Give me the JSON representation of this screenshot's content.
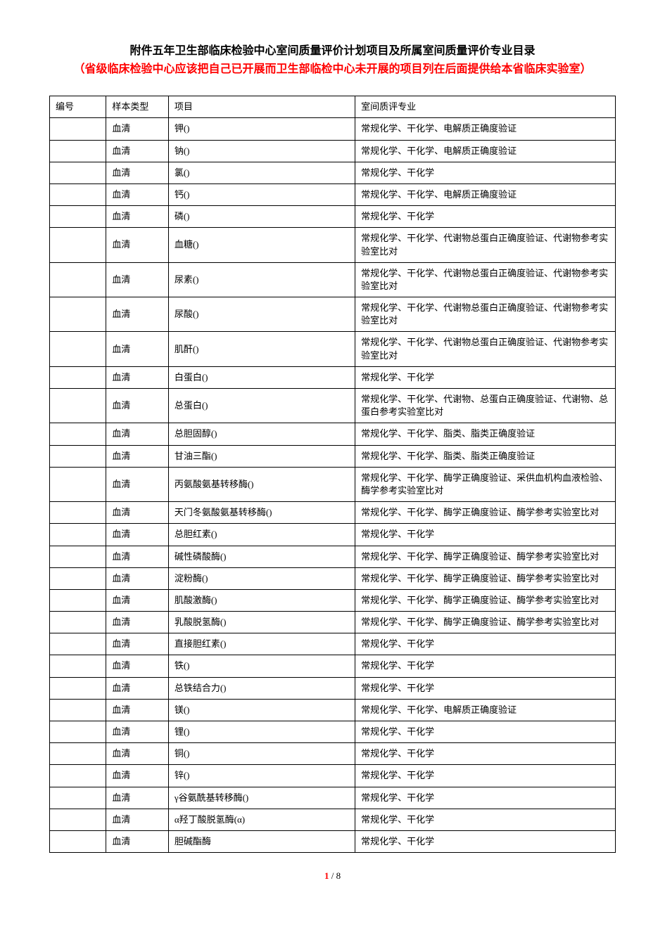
{
  "title": {
    "line1": "附件五年卫生部临床检验中心室间质量评价计划项目及所属室间质量评价专业目录",
    "line2": "（省级临床检验中心应该把自己已开展而卫生部临检中心未开展的项目列在后面提供给本省临床实验室）"
  },
  "columns": [
    "编号",
    "样本类型",
    "项目",
    "室间质评专业"
  ],
  "rows": [
    [
      "",
      "血清",
      "钾()",
      "常规化学、干化学、电解质正确度验证"
    ],
    [
      "",
      "血清",
      "钠()",
      "常规化学、干化学、电解质正确度验证"
    ],
    [
      "",
      "血清",
      "氯()",
      "常规化学、干化学"
    ],
    [
      "",
      "血清",
      "钙()",
      "常规化学、干化学、电解质正确度验证"
    ],
    [
      "",
      "血清",
      "磷()",
      "常规化学、干化学"
    ],
    [
      "",
      "血清",
      "血糖()",
      "常规化学、干化学、代谢物总蛋白正确度验证、代谢物参考实验室比对"
    ],
    [
      "",
      "血清",
      "尿素()",
      "常规化学、干化学、代谢物总蛋白正确度验证、代谢物参考实验室比对"
    ],
    [
      "",
      "血清",
      "尿酸()",
      "常规化学、干化学、代谢物总蛋白正确度验证、代谢物参考实验室比对"
    ],
    [
      "",
      "血清",
      "肌酐()",
      "常规化学、干化学、代谢物总蛋白正确度验证、代谢物参考实验室比对"
    ],
    [
      "",
      "血清",
      "白蛋白()",
      "常规化学、干化学"
    ],
    [
      "",
      "血清",
      "总蛋白()",
      "常规化学、干化学、代谢物、总蛋白正确度验证、代谢物、总蛋白参考实验室比对"
    ],
    [
      "",
      "血清",
      "总胆固醇()",
      "常规化学、干化学、脂类、脂类正确度验证"
    ],
    [
      "",
      "血清",
      "甘油三酯()",
      "常规化学、干化学、脂类、脂类正确度验证"
    ],
    [
      "",
      "血清",
      "丙氨酸氨基转移酶()",
      "常规化学、干化学、酶学正确度验证、采供血机构血液检验、酶学参考实验室比对"
    ],
    [
      "",
      "血清",
      "天门冬氨酸氨基转移酶()",
      "常规化学、干化学、酶学正确度验证、酶学参考实验室比对"
    ],
    [
      "",
      "血清",
      "总胆红素()",
      "常规化学、干化学"
    ],
    [
      "",
      "血清",
      "碱性磷酸酶()",
      "常规化学、干化学、酶学正确度验证、酶学参考实验室比对"
    ],
    [
      "",
      "血清",
      "淀粉酶()",
      "常规化学、干化学、酶学正确度验证、酶学参考实验室比对"
    ],
    [
      "",
      "血清",
      "肌酸激酶()",
      "常规化学、干化学、酶学正确度验证、酶学参考实验室比对"
    ],
    [
      "",
      "血清",
      "乳酸脱氢酶()",
      "常规化学、干化学、酶学正确度验证、酶学参考实验室比对"
    ],
    [
      "",
      "血清",
      "直接胆红素()",
      "常规化学、干化学"
    ],
    [
      "",
      "血清",
      "铁()",
      "常规化学、干化学"
    ],
    [
      "",
      "血清",
      "总铁结合力()",
      "常规化学、干化学"
    ],
    [
      "",
      "血清",
      "镁()",
      "常规化学、干化学、电解质正确度验证"
    ],
    [
      "",
      "血清",
      "锂()",
      "常规化学、干化学"
    ],
    [
      "",
      "血清",
      "铜()",
      "常规化学、干化学"
    ],
    [
      "",
      "血清",
      "锌()",
      "常规化学、干化学"
    ],
    [
      "",
      "血清",
      "γ谷氨酰基转移酶()",
      "常规化学、干化学"
    ],
    [
      "",
      "血清",
      "α羟丁酸脱氢酶(α)",
      "常规化学、干化学"
    ],
    [
      "",
      "血清",
      "胆碱酯酶",
      "常规化学、干化学"
    ]
  ],
  "page": {
    "current": "1",
    "sep": " / ",
    "total": "8"
  },
  "colors": {
    "text": "#000000",
    "accent": "#ff0000",
    "border": "#000000",
    "background": "#ffffff"
  }
}
